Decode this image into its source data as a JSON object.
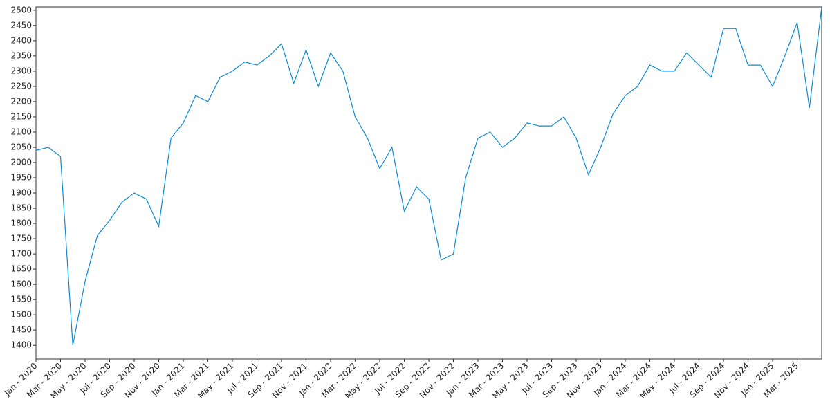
{
  "chart_data": {
    "type": "line",
    "x": [
      "2020-01",
      "2020-02",
      "2020-03",
      "2020-04",
      "2020-05",
      "2020-06",
      "2020-07",
      "2020-08",
      "2020-09",
      "2020-10",
      "2020-11",
      "2020-12",
      "2021-01",
      "2021-02",
      "2021-03",
      "2021-04",
      "2021-05",
      "2021-06",
      "2021-07",
      "2021-08",
      "2021-09",
      "2021-10",
      "2021-11",
      "2021-12",
      "2022-01",
      "2022-02",
      "2022-03",
      "2022-04",
      "2022-05",
      "2022-06",
      "2022-07",
      "2022-08",
      "2022-09",
      "2022-10",
      "2022-11",
      "2022-12",
      "2023-01",
      "2023-02",
      "2023-03",
      "2023-04",
      "2023-05",
      "2023-06",
      "2023-07",
      "2023-08",
      "2023-09",
      "2023-10",
      "2023-11",
      "2023-12",
      "2024-01",
      "2024-02",
      "2024-03",
      "2024-04",
      "2024-05",
      "2024-06",
      "2024-07",
      "2024-08",
      "2024-09",
      "2024-10",
      "2024-11",
      "2024-12",
      "2025-01",
      "2025-02",
      "2025-03",
      "2025-04",
      "2025-05"
    ],
    "series": [
      {
        "color": "#0a8bd6",
        "values": [
          2040,
          2050,
          2020,
          1400,
          1610,
          1760,
          1810,
          1870,
          1900,
          1880,
          1790,
          2080,
          2130,
          2220,
          2200,
          2280,
          2300,
          2330,
          2320,
          2350,
          2390,
          2260,
          2370,
          2250,
          2360,
          2300,
          2150,
          2080,
          1980,
          2050,
          1840,
          1920,
          1880,
          1680,
          1700,
          1950,
          2080,
          2100,
          2050,
          2080,
          2130,
          2120,
          2120,
          2150,
          2080,
          1960,
          2050,
          2160,
          2220,
          2250,
          2320,
          2300,
          2300,
          2360,
          2320,
          2280,
          2440,
          2440,
          2320,
          2320,
          2250,
          2350,
          2460,
          2180,
          2510
        ]
      }
    ],
    "xlim": [
      "2020-01",
      "2025-05"
    ],
    "xticks": [
      {
        "value": "2020-01",
        "label": "Jan - 2020"
      },
      {
        "value": "2020-03",
        "label": "Mar - 2020"
      },
      {
        "value": "2020-05",
        "label": "May - 2020"
      },
      {
        "value": "2020-07",
        "label": "Jul - 2020"
      },
      {
        "value": "2020-09",
        "label": "Sep - 2020"
      },
      {
        "value": "2020-11",
        "label": "Nov - 2020"
      },
      {
        "value": "2021-01",
        "label": "Jan - 2021"
      },
      {
        "value": "2021-03",
        "label": "Mar - 2021"
      },
      {
        "value": "2021-05",
        "label": "May - 2021"
      },
      {
        "value": "2021-07",
        "label": "Jul - 2021"
      },
      {
        "value": "2021-09",
        "label": "Sep - 2021"
      },
      {
        "value": "2021-11",
        "label": "Nov - 2021"
      },
      {
        "value": "2022-01",
        "label": "Jan - 2022"
      },
      {
        "value": "2022-03",
        "label": "Mar - 2022"
      },
      {
        "value": "2022-05",
        "label": "May - 2022"
      },
      {
        "value": "2022-07",
        "label": "Jul - 2022"
      },
      {
        "value": "2022-09",
        "label": "Sep - 2022"
      },
      {
        "value": "2022-11",
        "label": "Nov - 2022"
      },
      {
        "value": "2023-01",
        "label": "Jan - 2023"
      },
      {
        "value": "2023-03",
        "label": "Mar - 2023"
      },
      {
        "value": "2023-05",
        "label": "May - 2023"
      },
      {
        "value": "2023-07",
        "label": "Jul - 2023"
      },
      {
        "value": "2023-09",
        "label": "Sep - 2023"
      },
      {
        "value": "2023-11",
        "label": "Nov - 2023"
      },
      {
        "value": "2024-01",
        "label": "Jan - 2024"
      },
      {
        "value": "2024-03",
        "label": "Mar - 2024"
      },
      {
        "value": "2024-05",
        "label": "May - 2024"
      },
      {
        "value": "2024-07",
        "label": "Jul - 2024"
      },
      {
        "value": "2024-09",
        "label": "Sep - 2024"
      },
      {
        "value": "2024-11",
        "label": "Nov - 2024"
      },
      {
        "value": "2025-01",
        "label": "Jan - 2025"
      },
      {
        "value": "2025-03",
        "label": "Mar - 2025"
      }
    ],
    "ylim": [
      1355,
      2511
    ],
    "yticks": [
      1400,
      1450,
      1500,
      1550,
      1600,
      1650,
      1700,
      1750,
      1800,
      1850,
      1900,
      1950,
      2000,
      2050,
      2100,
      2150,
      2200,
      2250,
      2300,
      2350,
      2400,
      2450,
      2500
    ],
    "grid": false
  }
}
